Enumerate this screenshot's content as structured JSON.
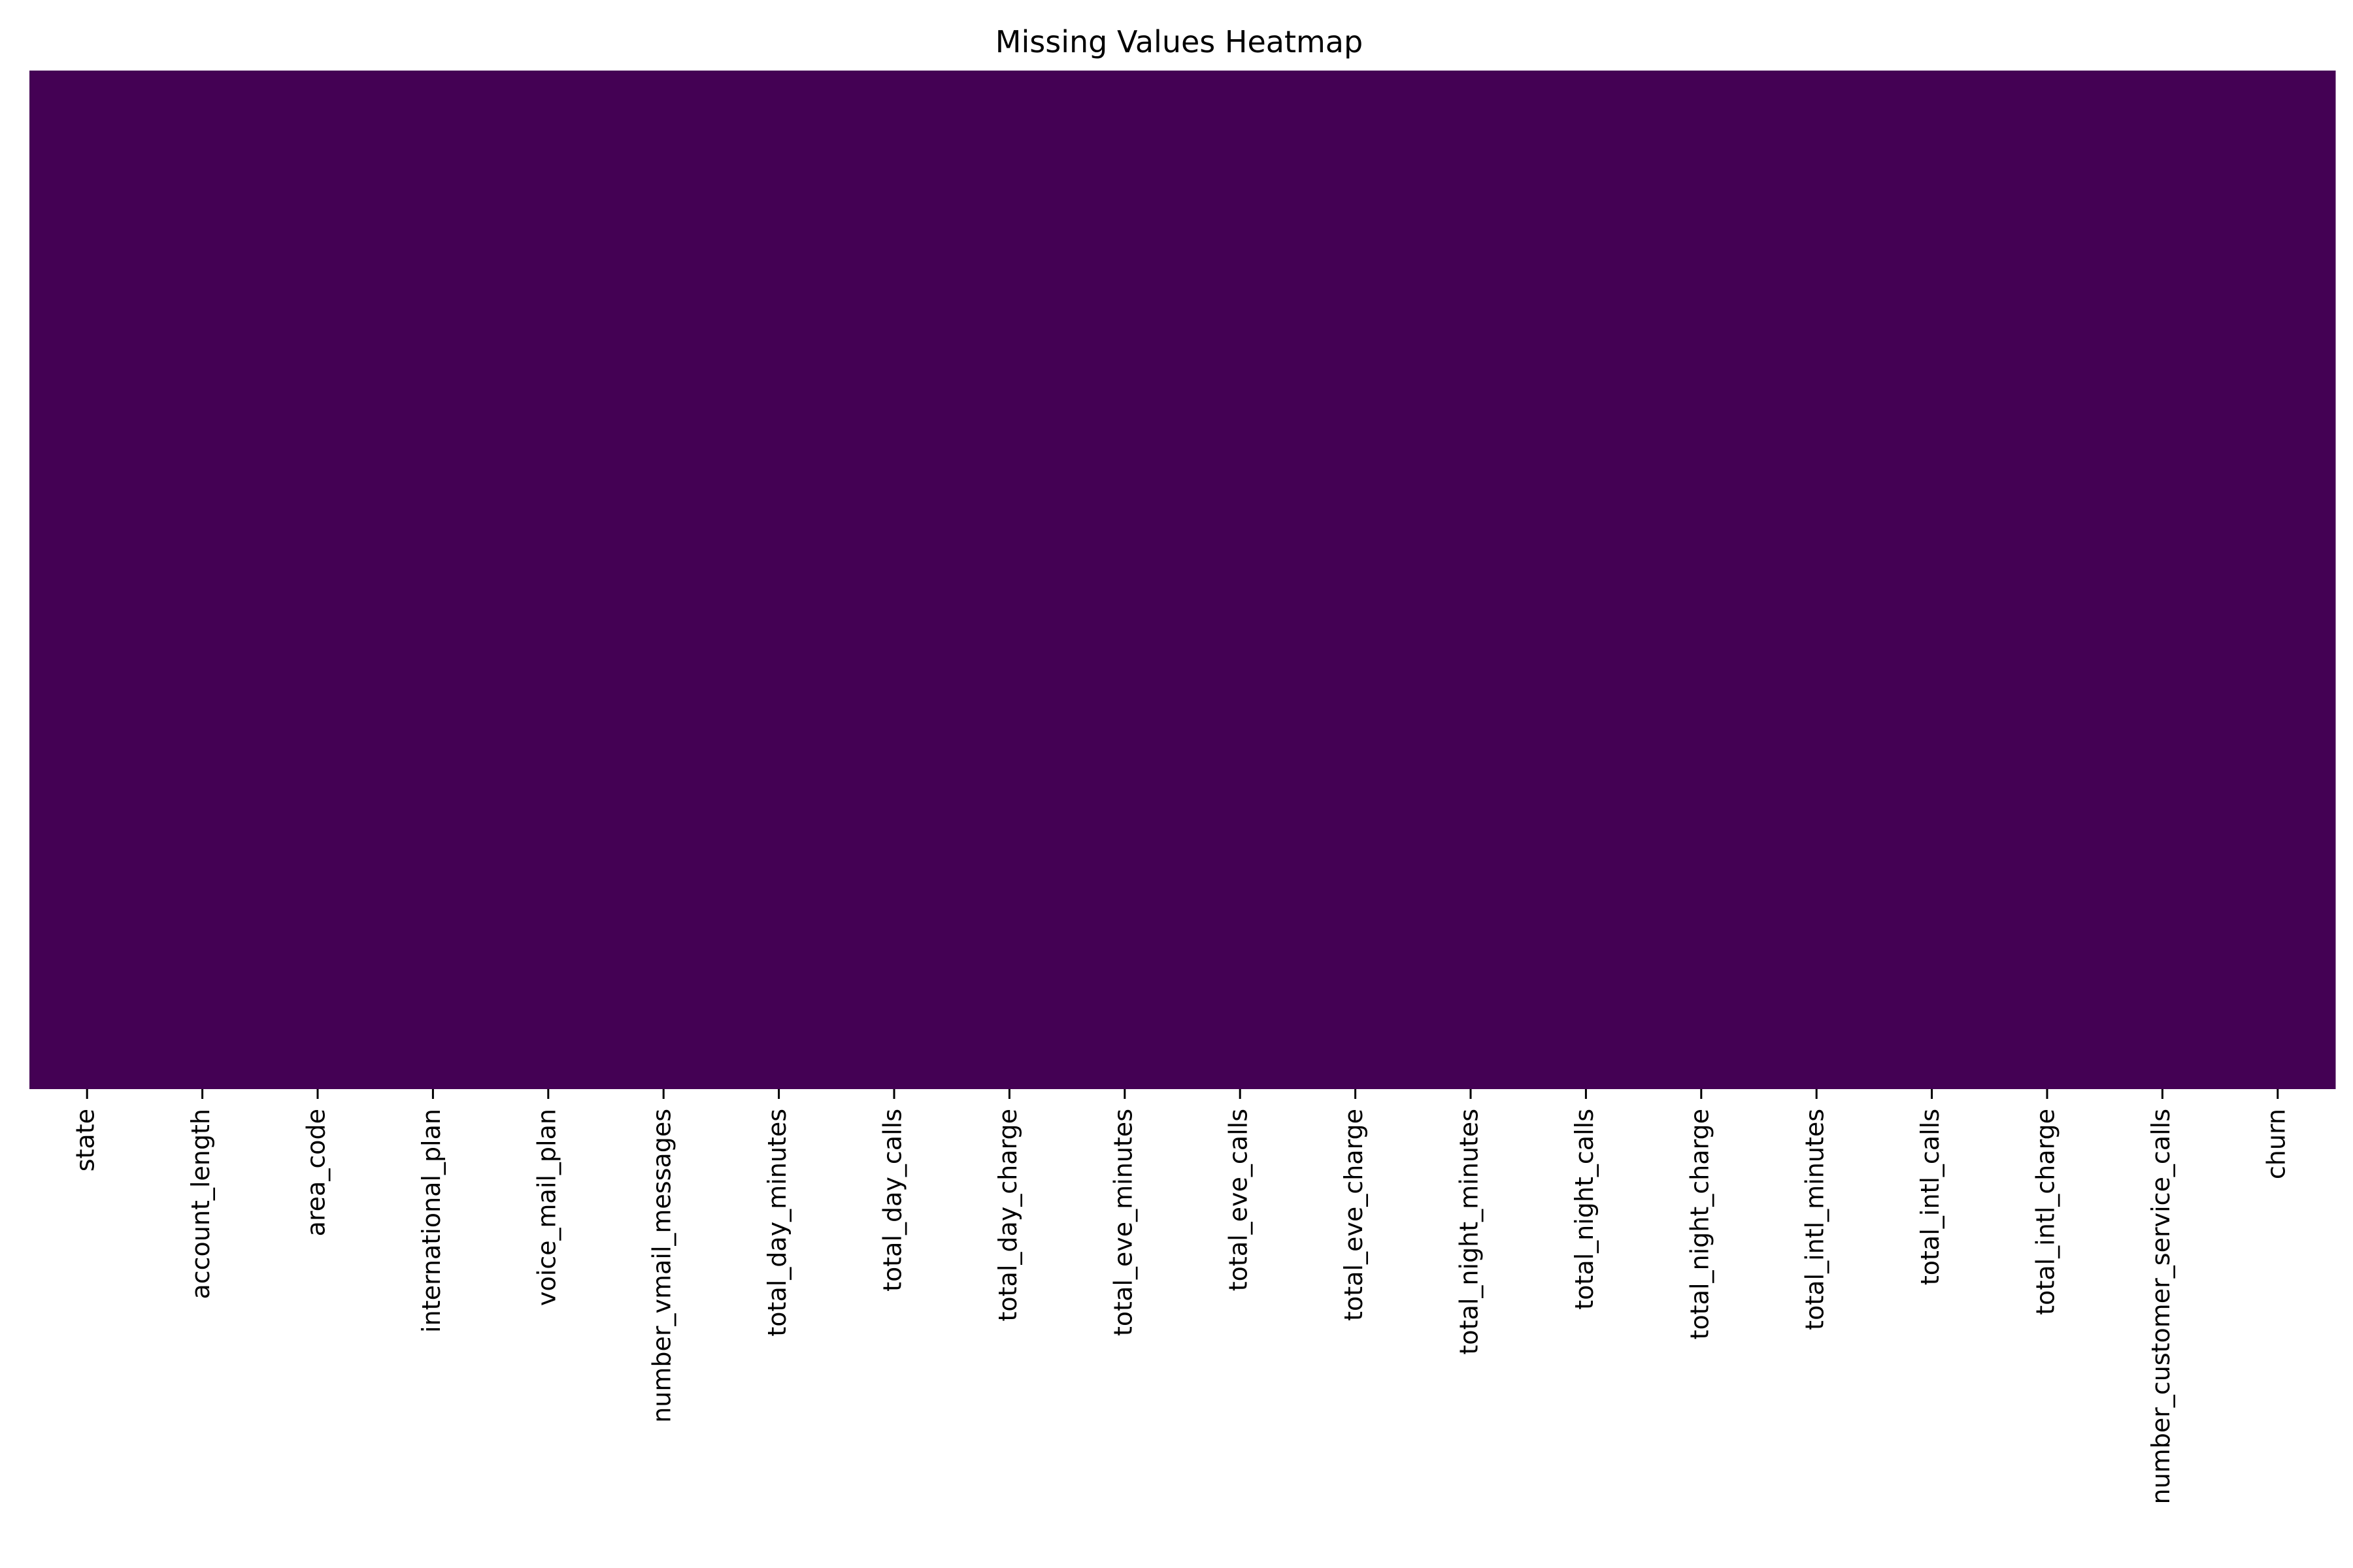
{
  "chart_data": {
    "type": "heatmap",
    "title": "Missing Values Heatmap",
    "xlabel": "",
    "ylabel": "",
    "columns": [
      "state",
      "account_length",
      "area_code",
      "international_plan",
      "voice_mail_plan",
      "number_vmail_messages",
      "total_day_minutes",
      "total_day_calls",
      "total_day_charge",
      "total_eve_minutes",
      "total_eve_calls",
      "total_eve_charge",
      "total_night_minutes",
      "total_night_calls",
      "total_night_charge",
      "total_intl_minutes",
      "total_intl_calls",
      "total_intl_charge",
      "number_customer_service_calls",
      "churn"
    ],
    "values": [
      0,
      0,
      0,
      0,
      0,
      0,
      0,
      0,
      0,
      0,
      0,
      0,
      0,
      0,
      0,
      0,
      0,
      0,
      0,
      0
    ],
    "colormap": "viridis",
    "cell_color": "#440154",
    "colorbar": false,
    "y_ticks": false,
    "grid": false
  }
}
